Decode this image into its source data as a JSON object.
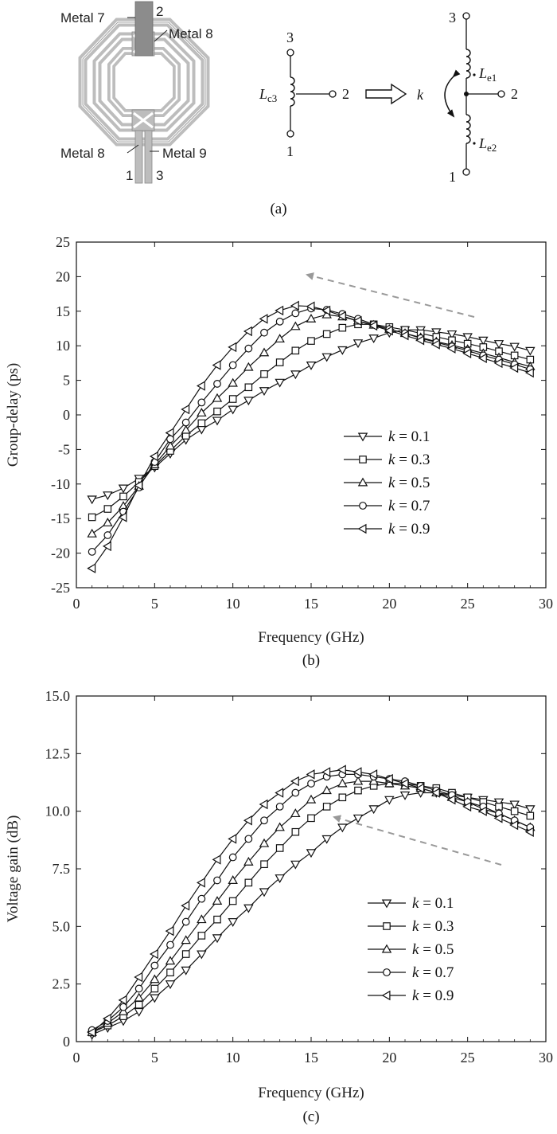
{
  "figure_a": {
    "layout_labels": {
      "metal7": "Metal 7",
      "metal8_top": "Metal 8",
      "metal8_bottom": "Metal 8",
      "metal9": "Metal 9",
      "port1": "1",
      "port2": "2",
      "port3": "3"
    },
    "circuit_left": {
      "inductor": "L",
      "inductor_sub": "c3",
      "node1": "1",
      "node2": "2",
      "node3": "3"
    },
    "coupling": "k",
    "circuit_right": {
      "inductor_top": "L",
      "inductor_top_sub": "e1",
      "inductor_bottom": "L",
      "inductor_bottom_sub": "e2",
      "node1": "1",
      "node2": "2",
      "node3": "3"
    },
    "caption": "(a)"
  },
  "chart_data": [
    {
      "type": "line",
      "caption": "(b)",
      "title": "",
      "xlabel": "Frequency (GHz)",
      "ylabel": "Group-delay (ps)",
      "xlim": [
        0,
        30
      ],
      "ylim": [
        -25,
        25
      ],
      "xticks": [
        0,
        5,
        10,
        15,
        20,
        25,
        30
      ],
      "yticks": [
        -25,
        -20,
        -15,
        -10,
        -5,
        0,
        5,
        10,
        15,
        20,
        25
      ],
      "legend_position": "center-right",
      "trend_arrow": "dashed gray arrow pointing up-left",
      "x": [
        1,
        2,
        3,
        4,
        5,
        6,
        7,
        8,
        9,
        10,
        11,
        12,
        13,
        14,
        15,
        16,
        17,
        18,
        19,
        20,
        21,
        22,
        23,
        24,
        25,
        26,
        27,
        28,
        29
      ],
      "series": [
        {
          "name": "k = 0.1",
          "marker": "triangle-down",
          "values": [
            -12.2,
            -11.6,
            -10.6,
            -9.2,
            -7.6,
            -5.6,
            -3.6,
            -2.1,
            -0.8,
            0.8,
            2.1,
            3.5,
            4.7,
            5.9,
            7.2,
            8.4,
            9.4,
            10.4,
            11.1,
            11.9,
            12.3,
            12.3,
            12.0,
            11.7,
            11.3,
            10.8,
            10.3,
            9.9,
            9.3
          ]
        },
        {
          "name": "k = 0.3",
          "marker": "square",
          "values": [
            -14.8,
            -13.6,
            -11.8,
            -9.7,
            -7.4,
            -5.2,
            -3.0,
            -1.2,
            0.5,
            2.3,
            4.0,
            5.9,
            7.6,
            9.3,
            10.7,
            11.7,
            12.6,
            13.1,
            13.1,
            12.7,
            12.3,
            11.8,
            11.3,
            10.8,
            10.3,
            9.8,
            9.2,
            8.6,
            8.0
          ]
        },
        {
          "name": "k = 0.5",
          "marker": "triangle-up",
          "values": [
            -17.2,
            -15.6,
            -13.2,
            -10.3,
            -7.2,
            -4.5,
            -2.2,
            0.3,
            2.4,
            4.6,
            6.9,
            9.0,
            11.0,
            12.8,
            13.9,
            14.5,
            14.2,
            13.6,
            13.0,
            12.4,
            11.8,
            11.2,
            10.6,
            10.1,
            9.5,
            8.9,
            8.3,
            7.6,
            7.0
          ]
        },
        {
          "name": "k = 0.7",
          "marker": "circle",
          "values": [
            -19.8,
            -17.4,
            -14.0,
            -10.5,
            -6.8,
            -3.5,
            -1.1,
            1.8,
            4.5,
            7.2,
            9.6,
            11.9,
            13.5,
            14.7,
            15.4,
            15.2,
            14.6,
            13.9,
            13.1,
            12.4,
            11.8,
            11.1,
            10.5,
            9.9,
            9.3,
            8.6,
            8.0,
            7.3,
            6.6
          ]
        },
        {
          "name": "k = 0.9",
          "marker": "triangle-left",
          "values": [
            -22.2,
            -19.0,
            -14.8,
            -10.2,
            -6.0,
            -2.6,
            0.8,
            4.2,
            7.2,
            9.8,
            12.1,
            13.9,
            15.1,
            15.8,
            15.7,
            15.1,
            14.3,
            13.6,
            12.9,
            12.2,
            11.5,
            10.8,
            10.2,
            9.6,
            8.9,
            8.2,
            7.5,
            6.8,
            6.1
          ]
        }
      ]
    },
    {
      "type": "line",
      "caption": "(c)",
      "title": "",
      "xlabel": "Frequency (GHz)",
      "ylabel": "Voltage gain (dB)",
      "xlim": [
        0,
        30
      ],
      "ylim": [
        0,
        15
      ],
      "xticks": [
        0,
        5,
        10,
        15,
        20,
        25,
        30
      ],
      "yticks": [
        0,
        2.5,
        5.0,
        7.5,
        10.0,
        12.5,
        15.0
      ],
      "ytick_labels": [
        "0",
        "2.5",
        "5.0",
        "7.5",
        "10.0",
        "12.5",
        "15.0"
      ],
      "legend_position": "lower-right",
      "trend_arrow": "dashed gray arrow pointing up-left",
      "x": [
        1,
        2,
        3,
        4,
        5,
        6,
        7,
        8,
        9,
        10,
        11,
        12,
        13,
        14,
        15,
        16,
        17,
        18,
        19,
        20,
        21,
        22,
        23,
        24,
        25,
        26,
        27,
        28,
        29
      ],
      "series": [
        {
          "name": "k = 0.1",
          "marker": "triangle-down",
          "values": [
            0.3,
            0.6,
            0.9,
            1.3,
            1.9,
            2.5,
            3.1,
            3.8,
            4.5,
            5.2,
            5.8,
            6.5,
            7.1,
            7.7,
            8.2,
            8.8,
            9.3,
            9.7,
            10.1,
            10.5,
            10.7,
            10.8,
            10.8,
            10.7,
            10.6,
            10.5,
            10.4,
            10.3,
            10.1
          ]
        },
        {
          "name": "k = 0.3",
          "marker": "square",
          "values": [
            0.4,
            0.7,
            1.1,
            1.6,
            2.3,
            3.0,
            3.8,
            4.6,
            5.3,
            6.1,
            6.9,
            7.7,
            8.4,
            9.1,
            9.7,
            10.2,
            10.6,
            10.9,
            11.1,
            11.2,
            11.2,
            11.1,
            11.0,
            10.8,
            10.6,
            10.4,
            10.2,
            10.0,
            9.8
          ]
        },
        {
          "name": "k = 0.5",
          "marker": "triangle-up",
          "values": [
            0.4,
            0.8,
            1.3,
            1.9,
            2.7,
            3.5,
            4.4,
            5.3,
            6.1,
            7.0,
            7.8,
            8.6,
            9.3,
            9.9,
            10.5,
            10.9,
            11.2,
            11.3,
            11.3,
            11.2,
            11.1,
            11.0,
            10.8,
            10.6,
            10.4,
            10.1,
            9.9,
            9.6,
            9.3
          ]
        },
        {
          "name": "k = 0.7",
          "marker": "circle",
          "values": [
            0.5,
            0.9,
            1.5,
            2.3,
            3.3,
            4.2,
            5.2,
            6.2,
            7.0,
            8.0,
            8.8,
            9.6,
            10.2,
            10.8,
            11.2,
            11.5,
            11.6,
            11.6,
            11.5,
            11.4,
            11.3,
            11.1,
            10.9,
            10.7,
            10.4,
            10.2,
            9.9,
            9.6,
            9.3
          ]
        },
        {
          "name": "k = 0.9",
          "marker": "triangle-left",
          "values": [
            0.4,
            1.0,
            1.8,
            2.8,
            3.8,
            4.8,
            5.9,
            6.9,
            7.9,
            8.8,
            9.6,
            10.3,
            10.8,
            11.3,
            11.6,
            11.7,
            11.8,
            11.7,
            11.6,
            11.4,
            11.2,
            11.0,
            10.8,
            10.5,
            10.2,
            10.0,
            9.7,
            9.4,
            9.1
          ]
        }
      ]
    }
  ]
}
